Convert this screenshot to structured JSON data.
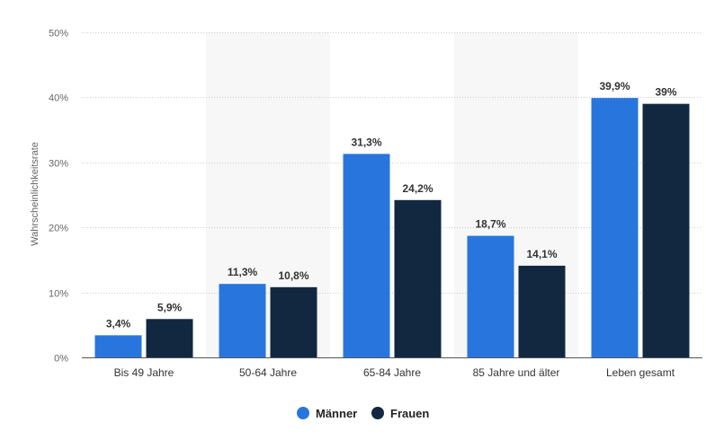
{
  "chart_data": {
    "type": "bar",
    "ylabel": "Wahrscheinlichkeitsrate",
    "ylim": [
      0,
      50
    ],
    "y_ticks": [
      {
        "value": 0,
        "label": "0%"
      },
      {
        "value": 10,
        "label": "10%"
      },
      {
        "value": 20,
        "label": "20%"
      },
      {
        "value": 30,
        "label": "30%"
      },
      {
        "value": 40,
        "label": "40%"
      },
      {
        "value": 50,
        "label": "50%"
      }
    ],
    "grid": true,
    "legend_position": "bottom-center",
    "categories": [
      "Bis 49 Jahre",
      "50-64 Jahre",
      "65-84 Jahre",
      "85 Jahre und älter",
      "Leben gesamt"
    ],
    "series": [
      {
        "name": "Männer",
        "color": "#2876dd",
        "values": [
          3.4,
          11.3,
          31.3,
          18.7,
          39.9
        ],
        "labels": [
          "3,4%",
          "11,3%",
          "31,3%",
          "18,7%",
          "39,9%"
        ]
      },
      {
        "name": "Frauen",
        "color": "#122841",
        "values": [
          5.9,
          10.8,
          24.2,
          14.1,
          39
        ],
        "labels": [
          "5,9%",
          "10,8%",
          "24,2%",
          "14,1%",
          "39%"
        ]
      }
    ],
    "band_color": "#f7f7f7"
  }
}
